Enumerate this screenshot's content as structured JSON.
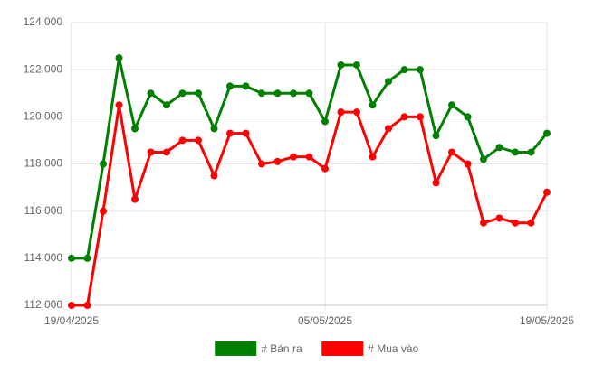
{
  "chart_data": {
    "type": "line",
    "x": [
      "19/04/2025",
      "20/04/2025",
      "21/04/2025",
      "22/04/2025",
      "23/04/2025",
      "24/04/2025",
      "25/04/2025",
      "26/04/2025",
      "27/04/2025",
      "28/04/2025",
      "29/04/2025",
      "30/04/2025",
      "01/05/2025",
      "02/05/2025",
      "03/05/2025",
      "04/05/2025",
      "05/05/2025",
      "06/05/2025",
      "07/05/2025",
      "08/05/2025",
      "09/05/2025",
      "10/05/2025",
      "11/05/2025",
      "12/05/2025",
      "13/05/2025",
      "14/05/2025",
      "15/05/2025",
      "16/05/2025",
      "17/05/2025",
      "18/05/2025",
      "19/05/2025"
    ],
    "series": [
      {
        "name": "# Bán ra",
        "color": "#008000",
        "values": [
          114000,
          114000,
          118000,
          122500,
          119500,
          121000,
          120500,
          121000,
          121000,
          119500,
          121300,
          121300,
          121000,
          121000,
          121000,
          121000,
          119800,
          122200,
          122200,
          120500,
          121500,
          122000,
          122000,
          119200,
          120500,
          120000,
          118200,
          118700,
          118500,
          118500,
          119300
        ]
      },
      {
        "name": "# Mua vào",
        "color": "#ff0000",
        "values": [
          112000,
          112000,
          116000,
          120500,
          116500,
          118500,
          118500,
          119000,
          119000,
          117500,
          119300,
          119300,
          118000,
          118100,
          118300,
          118300,
          117800,
          120200,
          120200,
          118300,
          119500,
          120000,
          120000,
          117200,
          118500,
          118000,
          115500,
          115700,
          115500,
          115500,
          116800
        ]
      }
    ],
    "ylim": [
      112000,
      124000
    ],
    "yticks": [
      {
        "value": 112000,
        "label": "112.000"
      },
      {
        "value": 114000,
        "label": "114.000"
      },
      {
        "value": 116000,
        "label": "116.000"
      },
      {
        "value": 118000,
        "label": "118.000"
      },
      {
        "value": 120000,
        "label": "120.000"
      },
      {
        "value": 122000,
        "label": "122.000"
      },
      {
        "value": 124000,
        "label": "124.000"
      }
    ],
    "xticks": [
      "19/04/2025",
      "05/05/2025",
      "19/05/2025"
    ],
    "grid": true,
    "legend": "bottom"
  }
}
